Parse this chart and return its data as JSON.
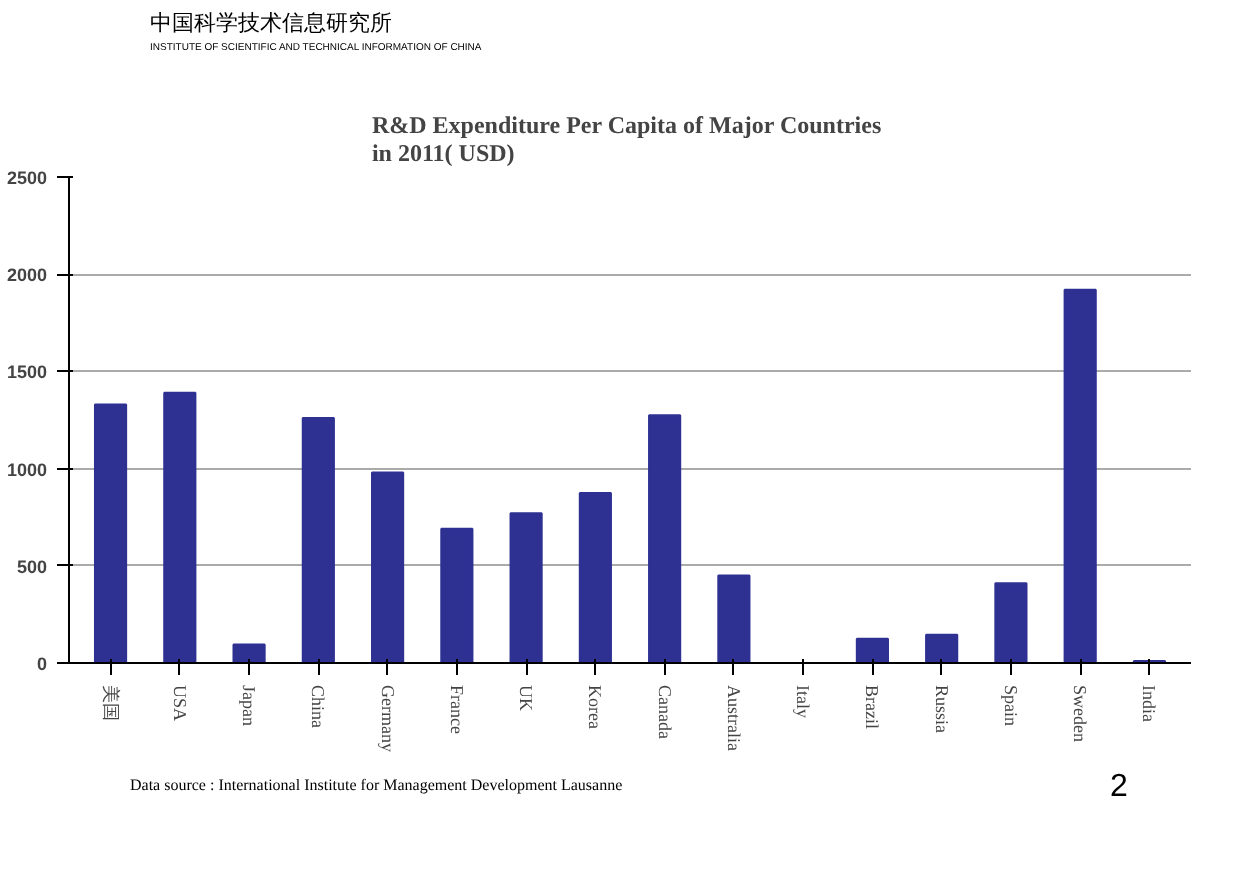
{
  "chart_data": {
    "type": "bar",
    "title": "R&D Expenditure Per Capita  of Major Countries\nin 2011( USD)",
    "categories": [
      "美国",
      "USA",
      "Japan",
      "China",
      "Germany",
      "France",
      "UK",
      "Korea",
      "Canada",
      "Australia",
      "Italy",
      "Brazil",
      "Russia",
      "Spain",
      "Sweden",
      "India"
    ],
    "values": [
      1330,
      1390,
      95,
      1260,
      980,
      690,
      770,
      875,
      1275,
      450,
      null,
      125,
      145,
      410,
      1920,
      10
    ],
    "color": "#2e3192",
    "ylim": [
      0,
      2500
    ],
    "yticks": [
      0,
      500,
      1000,
      1500,
      2000,
      2500
    ],
    "grid": "y",
    "annotations": [
      "中国科学技术信息研究所",
      "INSTITUTE OF SCIENTIFIC AND TECHNICAL INFORMATION OF CHINA",
      "Data source : International Institute for Management Development  Lausanne",
      "2"
    ]
  }
}
